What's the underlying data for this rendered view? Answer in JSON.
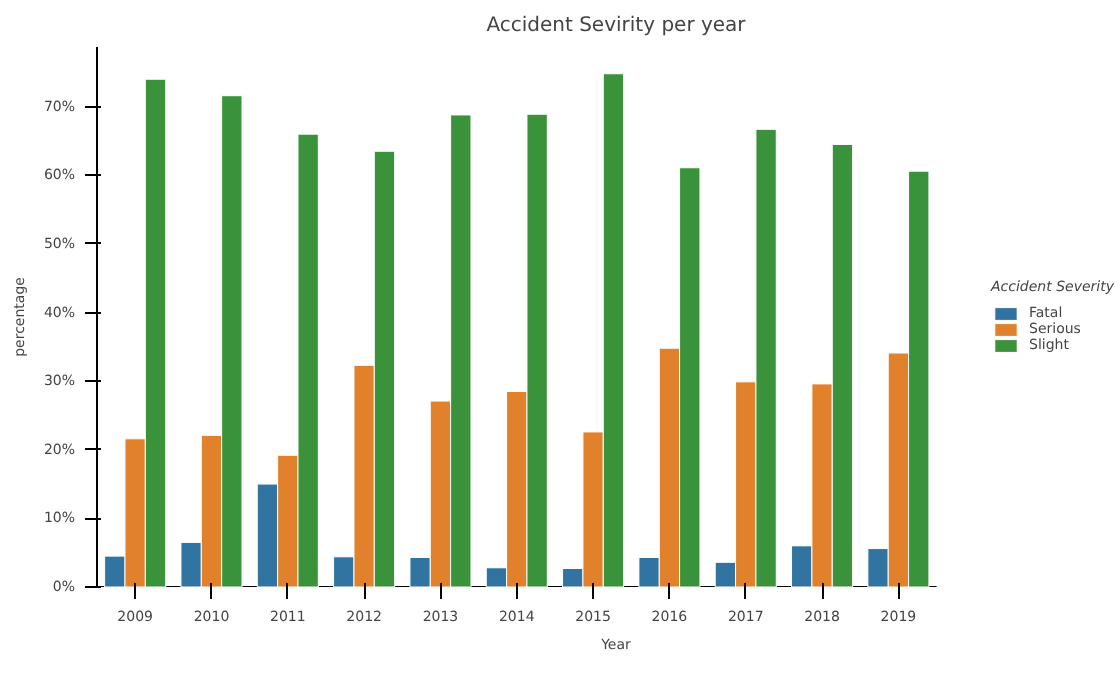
{
  "chart_data": {
    "type": "bar",
    "title": "Accident Sevirity per year",
    "xlabel": "Year",
    "ylabel": "percentage",
    "legend_title": "Accident Severity",
    "categories": [
      "2009",
      "2010",
      "2011",
      "2012",
      "2013",
      "2014",
      "2015",
      "2016",
      "2017",
      "2018",
      "2019"
    ],
    "series": [
      {
        "name": "Fatal",
        "color": "#3274a1",
        "values": [
          4.5,
          6.5,
          15.0,
          4.4,
          4.3,
          2.8,
          2.7,
          4.3,
          3.6,
          6.0,
          5.6
        ]
      },
      {
        "name": "Serious",
        "color": "#e1812c",
        "values": [
          21.6,
          22.1,
          19.2,
          32.3,
          27.1,
          28.5,
          22.6,
          34.8,
          29.9,
          29.6,
          34.1
        ]
      },
      {
        "name": "Slight",
        "color": "#3a923a",
        "values": [
          74.0,
          71.6,
          66.0,
          63.5,
          68.8,
          68.9,
          74.8,
          61.1,
          66.7,
          64.5,
          60.6
        ]
      }
    ],
    "ylim": [
      0,
      78.7
    ],
    "yticks": [
      {
        "value": 0,
        "label": "0%"
      },
      {
        "value": 10,
        "label": "10%"
      },
      {
        "value": 20,
        "label": "20%"
      },
      {
        "value": 30,
        "label": "30%"
      },
      {
        "value": 40,
        "label": "40%"
      },
      {
        "value": 50,
        "label": "50%"
      },
      {
        "value": 60,
        "label": "60%"
      },
      {
        "value": 70,
        "label": "70%"
      }
    ],
    "legend": "right",
    "grid": false
  }
}
